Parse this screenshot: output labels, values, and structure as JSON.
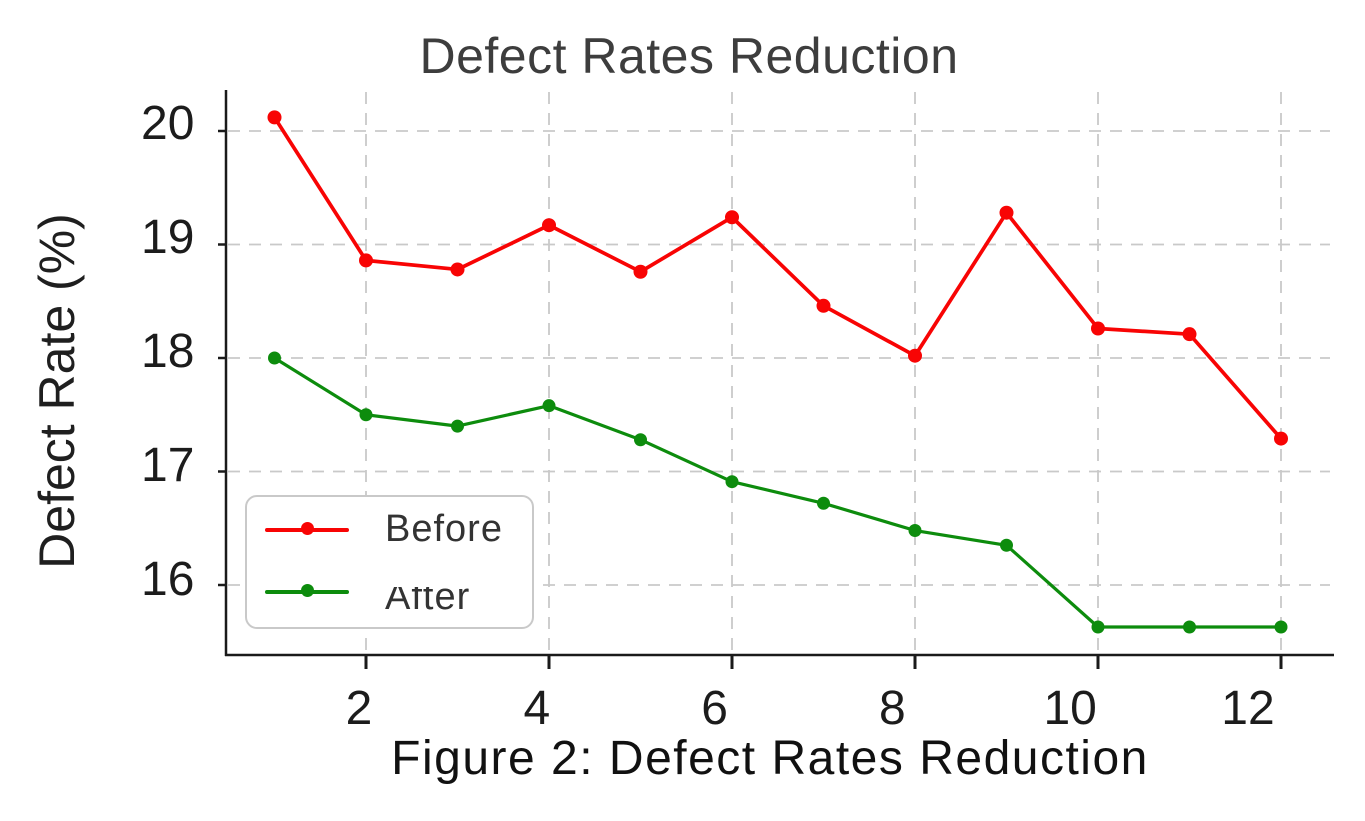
{
  "figure": {
    "title": "Defect Rates Reduction",
    "caption": "Figure 2: Defect Rates Reduction",
    "y_axis_label": "Defect Rate (%)"
  },
  "legend": {
    "items": [
      {
        "label": "Before",
        "color": "#f80404"
      },
      {
        "label": "After",
        "color": "#0d8c0d"
      }
    ]
  },
  "colors": {
    "grid": "#c9c9c9",
    "spine": "#1a1a1a",
    "title_text": "#3d3d3d",
    "tick_text": "#1c1c1c",
    "caption_text": "#111111",
    "legend_text": "#333333",
    "background": "#ffffff"
  },
  "chart_data": {
    "type": "line",
    "title": "Defect Rates Reduction",
    "xlabel": "",
    "ylabel": "Defect Rate (%)",
    "x": [
      1,
      2,
      3,
      4,
      5,
      6,
      7,
      8,
      9,
      10,
      11,
      12
    ],
    "series": [
      {
        "name": "Before",
        "color": "#f80404",
        "values": [
          20.12,
          18.86,
          18.78,
          19.17,
          18.76,
          19.24,
          18.46,
          18.02,
          19.28,
          18.26,
          18.21,
          17.29
        ]
      },
      {
        "name": "After",
        "color": "#0d8c0d",
        "values": [
          18.0,
          17.5,
          17.4,
          17.58,
          17.28,
          16.91,
          16.72,
          16.48,
          16.35,
          15.63,
          15.63,
          15.63
        ]
      }
    ],
    "x_tick_values": [
      2,
      4,
      6,
      8,
      10,
      12
    ],
    "x_tick_labels": [
      "2",
      "4",
      "6",
      "8",
      "10",
      "12"
    ],
    "y_tick_values": [
      20,
      19,
      18,
      17,
      16
    ],
    "y_tick_labels": [
      "20",
      "19",
      "18",
      "17",
      "16"
    ],
    "xlim": [
      0.47,
      12.55
    ],
    "ylim": [
      15.38,
      20.35
    ],
    "grid": "dashed",
    "legend_position": "lower-left-inside"
  }
}
